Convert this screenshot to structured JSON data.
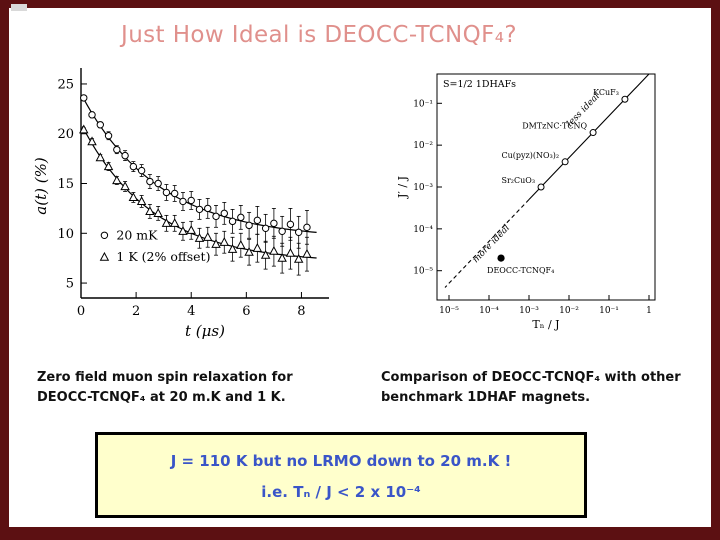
{
  "slide": {
    "title": "Just How Ideal is DEOCC-TCNQF₄?",
    "colors": {
      "frame": "#5c1012",
      "title": "#e0908c",
      "box_bg": "#ffffcc",
      "box_border": "#000000",
      "box_text": "#3a55c8"
    },
    "captions": {
      "left": "Zero field muon spin relaxation for DEOCC-TCNQF₄ at 20 m.K and 1 K.",
      "right": "Comparison of DEOCC-TCNQF₄ with other benchmark 1DHAF magnets."
    },
    "conclusion_box": {
      "line1": "J = 110 K but no LRMO down to 20 m.K !",
      "line2": "i.e. Tₙ / J < 2 x 10⁻⁴"
    }
  },
  "chart_data": [
    {
      "type": "scatter",
      "title": "Zero-field muon spin relaxation of DEOCC-TCNQF4",
      "xlabel": "t (μs)",
      "ylabel": "a(t) (%)",
      "xlim": [
        0,
        9
      ],
      "ylim": [
        3.5,
        26
      ],
      "xticks": [
        0,
        2,
        4,
        6,
        8
      ],
      "yticks": [
        5,
        10,
        15,
        20,
        25
      ],
      "legend_position": "lower-left",
      "series": [
        {
          "name": "20 mK",
          "marker": "circle",
          "t": [
            0.1,
            0.4,
            0.7,
            1.0,
            1.3,
            1.6,
            1.9,
            2.2,
            2.5,
            2.8,
            3.1,
            3.4,
            3.7,
            4.0,
            4.3,
            4.6,
            4.9,
            5.2,
            5.5,
            5.8,
            6.1,
            6.4,
            6.7,
            7.0,
            7.3,
            7.6,
            7.9,
            8.2
          ],
          "a": [
            23.6,
            21.9,
            20.9,
            19.8,
            18.4,
            17.8,
            16.7,
            16.3,
            15.2,
            15.0,
            14.1,
            14.0,
            13.2,
            13.3,
            12.4,
            12.5,
            11.7,
            12.0,
            11.2,
            11.6,
            10.8,
            11.3,
            10.5,
            11.0,
            10.2,
            10.9,
            10.1,
            10.6
          ],
          "err": [
            0.2,
            0.3,
            0.3,
            0.4,
            0.4,
            0.5,
            0.5,
            0.6,
            0.7,
            0.7,
            0.8,
            0.8,
            0.9,
            0.9,
            1.0,
            1.0,
            1.1,
            1.1,
            1.2,
            1.2,
            1.3,
            1.4,
            1.4,
            1.5,
            1.5,
            1.6,
            1.6,
            1.7
          ],
          "fit": {
            "baseline": 9.4,
            "amp": 14.6,
            "tau": 2.8
          }
        },
        {
          "name": "1 K (2% offset)",
          "marker": "triangle",
          "t": [
            0.1,
            0.4,
            0.7,
            1.0,
            1.3,
            1.6,
            1.9,
            2.2,
            2.5,
            2.8,
            3.1,
            3.4,
            3.7,
            4.0,
            4.3,
            4.6,
            4.9,
            5.2,
            5.5,
            5.8,
            6.1,
            6.4,
            6.7,
            7.0,
            7.3,
            7.6,
            7.9,
            8.2
          ],
          "a": [
            20.4,
            19.2,
            17.6,
            16.7,
            15.3,
            14.7,
            13.6,
            13.2,
            12.2,
            12.0,
            11.0,
            11.0,
            10.2,
            10.3,
            9.5,
            9.6,
            8.9,
            9.1,
            8.4,
            8.8,
            8.1,
            8.5,
            7.8,
            8.2,
            7.5,
            8.0,
            7.4,
            7.9
          ],
          "err": [
            0.2,
            0.3,
            0.3,
            0.4,
            0.4,
            0.5,
            0.5,
            0.6,
            0.7,
            0.7,
            0.8,
            0.8,
            0.9,
            0.9,
            1.0,
            1.0,
            1.1,
            1.1,
            1.2,
            1.2,
            1.3,
            1.4,
            1.4,
            1.5,
            1.5,
            1.6,
            1.6,
            1.7
          ],
          "fit": {
            "baseline": 7.0,
            "amp": 14.0,
            "tau": 2.6
          }
        }
      ]
    },
    {
      "type": "scatter",
      "scale": "log-log",
      "title": "Benchmark comparison of 1DHAF magnets",
      "annotation_top": "S=1/2 1DHAFs",
      "xlabel": "Tₙ / J",
      "ylabel": "J′ / J",
      "xticks": [
        "10⁻⁵",
        "10⁻⁴",
        "10⁻³",
        "10⁻²",
        "10⁻¹",
        "1"
      ],
      "yticks": [
        "10⁻¹",
        "10⁻²",
        "10⁻³",
        "10⁻⁴",
        "10⁻⁵"
      ],
      "xlim_log": [
        -5.3,
        0.15
      ],
      "ylim_log": [
        -5.7,
        -0.3
      ],
      "trend_line": {
        "slope": 1,
        "intercept": -0.3,
        "solid_from_logx": -3.0,
        "dashed_to_logx": -5.1
      },
      "annotations": [
        {
          "text": "less ideal",
          "logx": -1.6,
          "logy": -1.2,
          "rotate": -46
        },
        {
          "text": "more ideal",
          "logx": -3.9,
          "logy": -4.4,
          "rotate": -46
        }
      ],
      "points": [
        {
          "label": "KCuF₃",
          "x": 0.25,
          "y": 0.125,
          "filled": false,
          "label_side": "left"
        },
        {
          "label": "DMTzNC·TCNQ",
          "x": 0.04,
          "y": 0.02,
          "filled": false,
          "label_side": "left"
        },
        {
          "label": "Cu(pyz)(NO₃)₂",
          "x": 0.008,
          "y": 0.004,
          "filled": false,
          "label_side": "left"
        },
        {
          "label": "Sr₂CuO₃",
          "x": 0.002,
          "y": 0.001,
          "filled": false,
          "label_side": "left"
        },
        {
          "label": "DEOCC-TCNQF₄",
          "x": 0.0002,
          "y": 2e-05,
          "filled": true,
          "label_side": "below"
        }
      ]
    }
  ]
}
